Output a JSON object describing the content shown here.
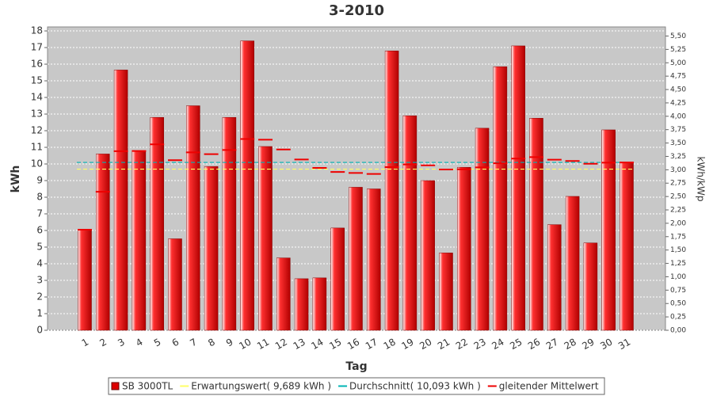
{
  "chart_data": {
    "type": "bar",
    "title": "3-2010",
    "x_label": "Tag",
    "y_label": "kWh",
    "y2_label": "kWh/kWp",
    "categories": [
      "1",
      "2",
      "3",
      "4",
      "5",
      "6",
      "7",
      "8",
      "9",
      "10",
      "11",
      "12",
      "13",
      "14",
      "15",
      "16",
      "17",
      "18",
      "19",
      "20",
      "21",
      "22",
      "23",
      "24",
      "25",
      "26",
      "27",
      "28",
      "29",
      "30",
      "31"
    ],
    "series": [
      {
        "name": "SB 3000TL",
        "color": "#dd0000",
        "values": [
          6.05,
          10.6,
          15.65,
          10.8,
          12.8,
          5.5,
          13.5,
          9.85,
          12.8,
          17.4,
          11.05,
          4.35,
          3.1,
          3.15,
          6.15,
          8.6,
          8.5,
          16.8,
          12.9,
          9.0,
          4.65,
          9.8,
          12.15,
          15.85,
          17.1,
          12.75,
          6.35,
          8.05,
          5.25,
          12.05,
          10.1
        ]
      },
      {
        "name": "Erwartungswert( 9,689 kWh )",
        "color": "#ffff66",
        "value": 9.689
      },
      {
        "name": "Durchschnitt( 10,093 kWh )",
        "color": "#00b4b4",
        "value": 10.093
      },
      {
        "name": "gleitender Mittelwert",
        "color": "#ee0000",
        "values": [
          6.05,
          8.33,
          10.77,
          10.78,
          11.18,
          10.23,
          10.7,
          10.59,
          10.84,
          11.5,
          11.46,
          10.87,
          10.27,
          9.76,
          9.52,
          9.46,
          9.4,
          9.81,
          9.97,
          9.92,
          9.67,
          9.68,
          9.79,
          10.04,
          10.32,
          10.41,
          10.26,
          10.18,
          10.01,
          10.08,
          10.09
        ]
      }
    ],
    "ylim": [
      0,
      18.24
    ],
    "yticks": [
      0,
      1,
      2,
      3,
      4,
      5,
      6,
      7,
      8,
      9,
      10,
      11,
      12,
      13,
      14,
      15,
      16,
      17,
      18
    ],
    "y2lim": [
      0,
      5.67
    ],
    "y2ticks": [
      {
        "value": 0,
        "label": "0,00"
      },
      {
        "value": 0.25,
        "label": "0,25"
      },
      {
        "value": 0.5,
        "label": "0,50"
      },
      {
        "value": 0.75,
        "label": "0,75"
      },
      {
        "value": 1,
        "label": "1,00"
      },
      {
        "value": 1.25,
        "label": "1,25"
      },
      {
        "value": 1.5,
        "label": "1,50"
      },
      {
        "value": 1.75,
        "label": "1,75"
      },
      {
        "value": 2,
        "label": "2,00"
      },
      {
        "value": 2.25,
        "label": "2,25"
      },
      {
        "value": 2.5,
        "label": "2,50"
      },
      {
        "value": 2.75,
        "label": "2,75"
      },
      {
        "value": 3,
        "label": "3,00"
      },
      {
        "value": 3.25,
        "label": "3,25"
      },
      {
        "value": 3.5,
        "label": "3,50"
      },
      {
        "value": 3.75,
        "label": "3,75"
      },
      {
        "value": 4,
        "label": "4,00"
      },
      {
        "value": 4.25,
        "label": "4,25"
      },
      {
        "value": 4.5,
        "label": "4,50"
      },
      {
        "value": 4.75,
        "label": "4,75"
      },
      {
        "value": 5,
        "label": "5,00"
      },
      {
        "value": 5.25,
        "label": "5,25"
      },
      {
        "value": 5.5,
        "label": "5,50"
      }
    ],
    "grid": true
  }
}
